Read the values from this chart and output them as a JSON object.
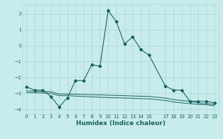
{
  "xlabel": "Humidex (Indice chaleur)",
  "bg_color": "#c8ecec",
  "grid_color": "#b0d8d8",
  "line_color": "#1a6060",
  "xlim": [
    -0.5,
    23.5
  ],
  "ylim": [
    -4.3,
    2.6
  ],
  "yticks": [
    -4,
    -3,
    -2,
    -1,
    0,
    1,
    2
  ],
  "xticks": [
    0,
    1,
    2,
    3,
    4,
    5,
    6,
    7,
    8,
    9,
    10,
    11,
    12,
    13,
    14,
    15,
    17,
    18,
    19,
    20,
    21,
    22,
    23
  ],
  "main_x": [
    0,
    1,
    2,
    3,
    4,
    5,
    6,
    7,
    8,
    9,
    10,
    11,
    12,
    13,
    14,
    15,
    17,
    18,
    19,
    20,
    21,
    22,
    23
  ],
  "main_y": [
    -2.6,
    -2.8,
    -2.8,
    -3.2,
    -3.85,
    -3.3,
    -2.2,
    -2.2,
    -1.2,
    -1.3,
    2.2,
    1.5,
    0.1,
    0.55,
    -0.25,
    -0.6,
    -2.55,
    -2.8,
    -2.8,
    -3.5,
    -3.5,
    -3.5,
    -3.6
  ],
  "flat1_x": [
    0,
    3,
    4,
    5,
    9,
    15,
    17,
    18,
    20,
    21,
    22,
    23
  ],
  "flat1_y": [
    -2.85,
    -2.9,
    -3.05,
    -3.05,
    -3.1,
    -3.2,
    -3.3,
    -3.4,
    -3.5,
    -3.6,
    -3.65,
    -3.7
  ],
  "flat2_x": [
    0,
    3,
    4,
    5,
    9,
    15,
    17,
    18,
    20,
    21,
    22,
    23
  ],
  "flat2_y": [
    -2.95,
    -3.0,
    -3.15,
    -3.15,
    -3.25,
    -3.35,
    -3.45,
    -3.55,
    -3.65,
    -3.7,
    -3.72,
    -3.78
  ]
}
